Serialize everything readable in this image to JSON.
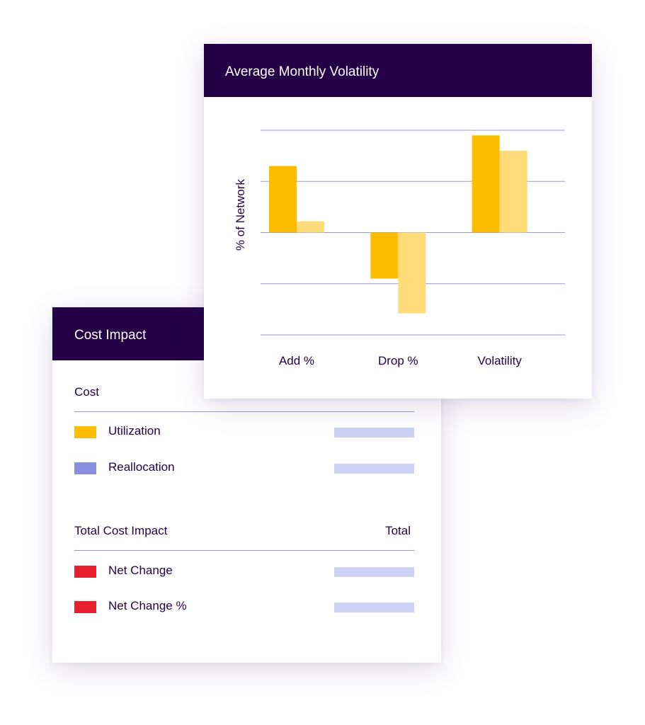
{
  "cost_card": {
    "title": "Cost Impact",
    "section_cost": {
      "title": "Cost",
      "items": [
        {
          "label": "Utilization",
          "color": "#ffbd00"
        },
        {
          "label": "Reallocation",
          "color": "#8a8fe0"
        }
      ]
    },
    "section_total": {
      "title": "Total Cost Impact",
      "right_label": "Total",
      "items": [
        {
          "label": "Net Change",
          "color": "#e8202e"
        },
        {
          "label": "Net Change %",
          "color": "#e8202e"
        }
      ]
    },
    "value_bar_color": "#cdd1f3"
  },
  "chart_card": {
    "title": "Average Monthly Volatility"
  },
  "chart_data": {
    "type": "bar",
    "title": "Average Monthly Volatility",
    "ylabel": "% of Network",
    "xlabel": "",
    "categories": [
      "Add %",
      "Drop %",
      "Volatility"
    ],
    "series": [
      {
        "values": [
          1.3,
          -0.9,
          1.9
        ],
        "color": "#ffbd00"
      },
      {
        "values": [
          0.22,
          -1.58,
          1.6
        ],
        "color": "#ffdb7a"
      }
    ],
    "ylim": [
      -2,
      2
    ],
    "grid": true,
    "gridline_color": "#9a98d6",
    "legend": "none"
  }
}
